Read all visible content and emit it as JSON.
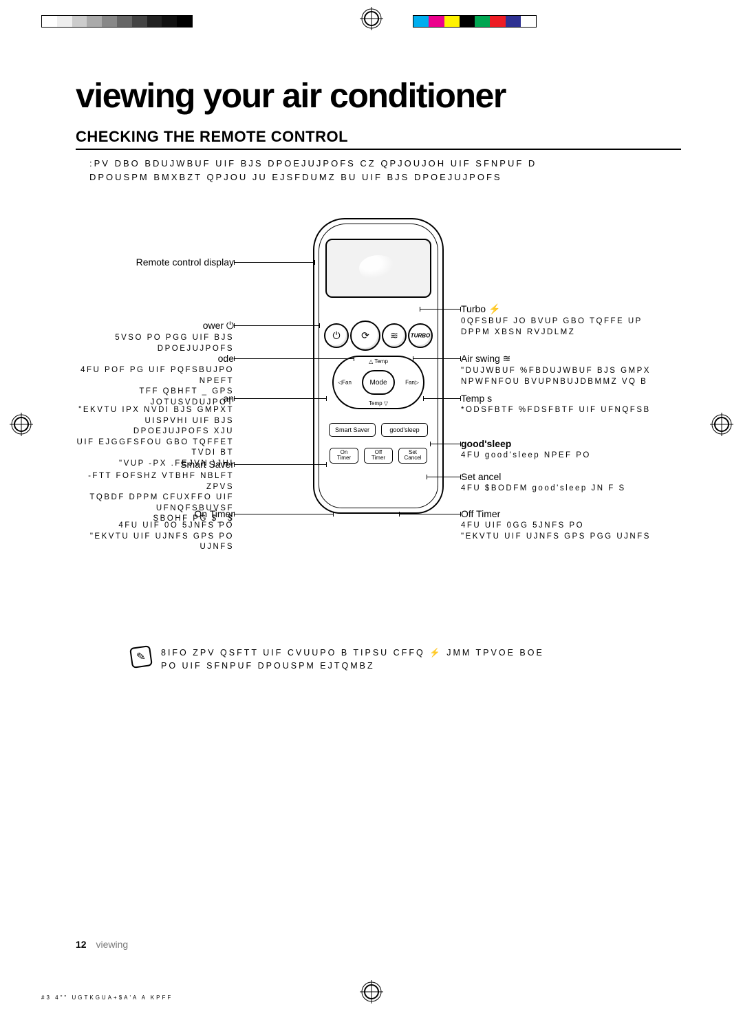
{
  "colors": {
    "text": "#000000",
    "muted": "#7a7a7a",
    "bg": "#ffffff",
    "strip_left": [
      "#ffffff",
      "#eeeeee",
      "#cccccc",
      "#aaaaaa",
      "#888888",
      "#666666",
      "#444444",
      "#222222",
      "#111111",
      "#000000"
    ],
    "strip_right": [
      "#00aeef",
      "#ec008c",
      "#fff200",
      "#000000",
      "#00a651",
      "#ed1c24",
      "#2e3192",
      "#ffffff"
    ]
  },
  "title": "viewing your air conditioner",
  "section_title": "CHECKING THE REMOTE CONTROL",
  "intro_line1": ":PV DBO BDUJWBUF UIF BJS DPOEJUJPOFS CZ QPJOUJOH UIF SFNPUF D",
  "intro_line2": "DPOUSPM  BMXBZT QPJOU JU EJSFDUMZ BU UIF BJS DPOEJUJPOFS",
  "remote": {
    "mode_label": "Mode",
    "temp_up": "Temp",
    "temp_dn": "Temp",
    "fan_l": "◁Fan",
    "fan_r": "Fan▷",
    "pill1_left": "Smart Saver",
    "pill1_right": "good'sleep",
    "pill2_a_top": "On",
    "pill2_a_bot": "Timer",
    "pill2_b_top": "Off",
    "pill2_b_bot": "Timer",
    "pill2_c_top": "Set",
    "pill2_c_bot": "Cancel"
  },
  "callouts": {
    "left": [
      {
        "title": "Remote control display",
        "desc": ""
      },
      {
        "title": "ower ⏻",
        "desc": "5VSO PO PGG UIF BJS DPOEJUJPOFS"
      },
      {
        "title": "ode",
        "desc": "4FU POF PG UIF  PQFSBUJPO NPEFT\nTFF QBHFT _ GPS JOTUSVDUJPOT"
      },
      {
        "title": "an",
        "desc": "\"EKVTU IPX NVDI BJS GMPXT\nUISPVHI UIF BJS DPOEJUJPOFS XJU\nUIF EJGGFSFOU GBO TQFFET TVDI BT\n\"VUP -PX .FEJVN )JHI"
      },
      {
        "title": "Smart Saver",
        "desc": "-FTT FOFSHZ VTBHF NBLFT ZPVS\nTQBDF DPPM CFUXFFO UIF UFNQFSBUVSF\nSBOHF PG  $_ $"
      },
      {
        "title": "On Timer",
        "desc": "4FU UIF 0O 5JNFS PO\n\"EKVTU UIF UJNFS GPS PO UJNFS"
      }
    ],
    "right": [
      {
        "title": "Turbo ⚡",
        "desc": "0QFSBUF JO BVUP GBO TQFFE UP\nDPPM XBSN RVJDLMZ"
      },
      {
        "title": "Air swing ≋",
        "desc": "\"DUJWBUF %FBDUJWBUF BJS GMPX\nNPWFNFOU BVUPNBUJDBMMZ VQ B"
      },
      {
        "title": "Temp s",
        "desc": "*ODSFBTF %FDSFBTF UIF UFNQFSB"
      },
      {
        "title": "good'sleep",
        "desc": "4FU good'sleep NPEF PO"
      },
      {
        "title": "Set   ancel",
        "desc": "4FU $BODFM good'sleep JN F S"
      },
      {
        "title": "Off Timer",
        "desc": "4FU UIF 0GG 5JNFS PO\n\"EKVTU UIF UJNFS GPS PGG UJNFS"
      }
    ]
  },
  "note": "8IFO ZPV QSFTT UIF CVUUPO  B TIPSU CFFQ ⚡ JMM TPVOE BOE\nPO UIF SFNPUF DPOUSPM EJTQMBZ",
  "footer": {
    "page": "12",
    "label": "viewing"
  },
  "microfooter": "#3 4\"\" UGTKGUA+$A'A   A    KPFF"
}
